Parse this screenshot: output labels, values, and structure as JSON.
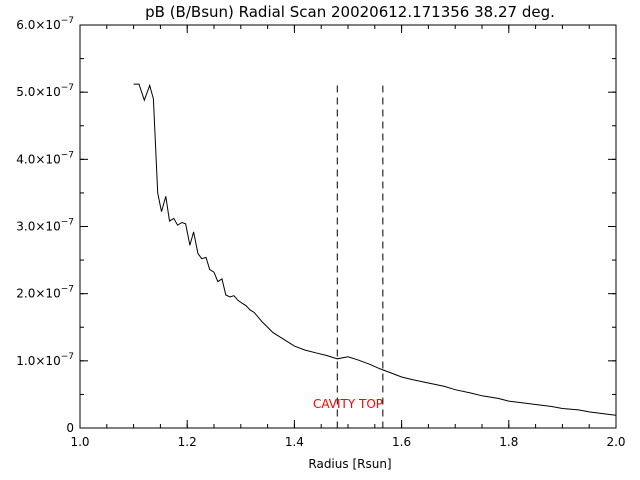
{
  "chart_data": {
    "type": "line",
    "title": "pB (B/Bsun) Radial Scan 20020612.171356 38.27 deg.",
    "xlabel": "Radius [Rsun]",
    "ylabel": "",
    "xlim": [
      1.0,
      2.0
    ],
    "ylim": [
      0,
      6e-07
    ],
    "x_ticks": [
      {
        "value": 1.0,
        "label": "1.0"
      },
      {
        "value": 1.2,
        "label": "1.2"
      },
      {
        "value": 1.4,
        "label": "1.4"
      },
      {
        "value": 1.6,
        "label": "1.6"
      },
      {
        "value": 1.8,
        "label": "1.8"
      },
      {
        "value": 2.0,
        "label": "2.0"
      }
    ],
    "y_ticks": [
      {
        "value": 0,
        "mantissa": "0",
        "exponent": ""
      },
      {
        "value": 1e-07,
        "mantissa": "1.0×10",
        "exponent": "−7"
      },
      {
        "value": 2e-07,
        "mantissa": "2.0×10",
        "exponent": "−7"
      },
      {
        "value": 3e-07,
        "mantissa": "3.0×10",
        "exponent": "−7"
      },
      {
        "value": 4e-07,
        "mantissa": "4.0×10",
        "exponent": "−7"
      },
      {
        "value": 5e-07,
        "mantissa": "5.0×10",
        "exponent": "−7"
      },
      {
        "value": 6e-07,
        "mantissa": "6.0×10",
        "exponent": "−7"
      }
    ],
    "grid": false,
    "series": [
      {
        "color": "#000000",
        "x": [
          1.1,
          1.11,
          1.12,
          1.13,
          1.137,
          1.145,
          1.152,
          1.16,
          1.167,
          1.175,
          1.182,
          1.19,
          1.197,
          1.205,
          1.212,
          1.22,
          1.227,
          1.235,
          1.242,
          1.25,
          1.257,
          1.265,
          1.272,
          1.28,
          1.287,
          1.295,
          1.302,
          1.31,
          1.317,
          1.325,
          1.34,
          1.36,
          1.38,
          1.4,
          1.42,
          1.44,
          1.46,
          1.48,
          1.5,
          1.52,
          1.54,
          1.56,
          1.58,
          1.6,
          1.62,
          1.65,
          1.68,
          1.7,
          1.73,
          1.75,
          1.78,
          1.8,
          1.83,
          1.85,
          1.88,
          1.9,
          1.93,
          1.95,
          1.97,
          1.99,
          2.0
        ],
        "y": [
          5.12e-07,
          5.12e-07,
          4.88e-07,
          5.1e-07,
          4.9e-07,
          3.5e-07,
          3.22e-07,
          3.45e-07,
          3.08e-07,
          3.12e-07,
          3.02e-07,
          3.06e-07,
          3.04e-07,
          2.72e-07,
          2.92e-07,
          2.6e-07,
          2.52e-07,
          2.54e-07,
          2.36e-07,
          2.32e-07,
          2.18e-07,
          2.22e-07,
          1.98e-07,
          1.95e-07,
          1.97e-07,
          1.9e-07,
          1.86e-07,
          1.82e-07,
          1.76e-07,
          1.72e-07,
          1.58e-07,
          1.42e-07,
          1.32e-07,
          1.22e-07,
          1.16e-07,
          1.12e-07,
          1.08e-07,
          1.03e-07,
          1.06e-07,
          1.01e-07,
          9.5e-08,
          8.8e-08,
          8.2e-08,
          7.6e-08,
          7.2e-08,
          6.7e-08,
          6.2e-08,
          5.7e-08,
          5.2e-08,
          4.8e-08,
          4.4e-08,
          4e-08,
          3.7e-08,
          3.5e-08,
          3.2e-08,
          2.9e-08,
          2.7e-08,
          2.4e-08,
          2.2e-08,
          2e-08,
          1.9e-08
        ]
      }
    ],
    "vertical_markers": [
      {
        "x": 1.48,
        "y_top": 5.1e-07,
        "style": "dashed",
        "color": "#000000"
      },
      {
        "x": 1.565,
        "y_top": 5.1e-07,
        "style": "dashed",
        "color": "#000000"
      }
    ],
    "annotations": [
      {
        "text": "CAVITY TOP",
        "x": 1.5,
        "y": 3e-08,
        "color": "#ff0000"
      }
    ]
  }
}
